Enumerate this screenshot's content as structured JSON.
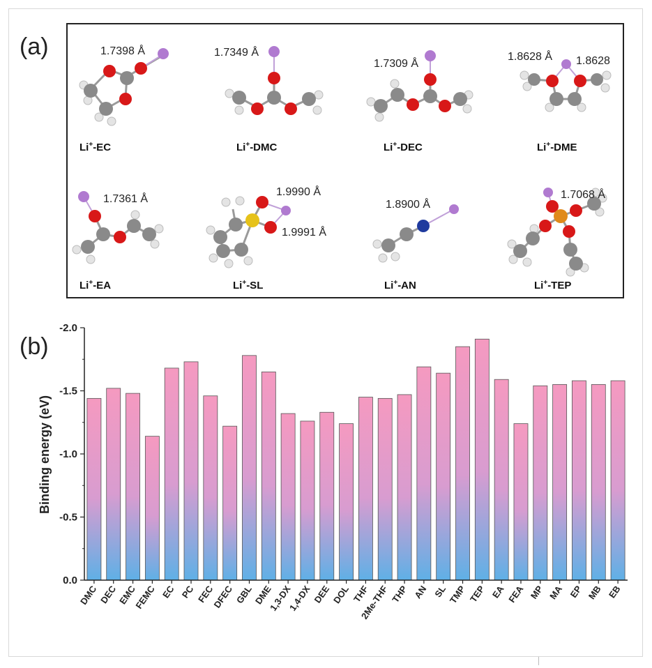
{
  "panel_a": {
    "label": "(a)",
    "molecules": [
      {
        "name": "Li",
        "sup": "+",
        "suffix": "-EC",
        "distances": [
          "1.7398 Å"
        ]
      },
      {
        "name": "Li",
        "sup": "+",
        "suffix": "-DMC",
        "distances": [
          "1.7349 Å"
        ]
      },
      {
        "name": "Li",
        "sup": "+",
        "suffix": "-DEC",
        "distances": [
          "1.7309 Å"
        ]
      },
      {
        "name": "Li",
        "sup": "+",
        "suffix": "-DME",
        "distances": [
          "1.8628 Å",
          "1.8628"
        ]
      },
      {
        "name": "Li",
        "sup": "+",
        "suffix": "-EA",
        "distances": [
          "1.7361 Å"
        ]
      },
      {
        "name": "Li",
        "sup": "+",
        "suffix": "-SL",
        "distances": [
          "1.9990 Å",
          "1.9991 Å"
        ]
      },
      {
        "name": "Li",
        "sup": "+",
        "suffix": "-AN",
        "distances": [
          "1.8900 Å"
        ]
      },
      {
        "name": "Li",
        "sup": "+",
        "suffix": "-TEP",
        "distances": [
          "1.7068 Å"
        ]
      }
    ]
  },
  "panel_b": {
    "label": "(b)"
  },
  "colors": {
    "bar_top": "#f59ac0",
    "bar_bottom": "#5fb0e6",
    "li_atom": "#b07ad0",
    "oxygen": "#d81818",
    "carbon": "#8a8a8a",
    "hydrogen": "#e4e4e4",
    "nitrogen": "#1f3a9e",
    "sulfur": "#e6c21a",
    "phosphorus": "#e08a1a"
  },
  "chart_data": {
    "type": "bar",
    "title": "",
    "xlabel": "",
    "ylabel": "Binding energy (eV)",
    "ylim": [
      0.0,
      -2.0
    ],
    "yticks": [
      "0.0",
      "-0.5",
      "-1.0",
      "-1.5",
      "-2.0"
    ],
    "ytick_values": [
      0.0,
      -0.5,
      -1.0,
      -1.5,
      -2.0
    ],
    "categories": [
      "DMC",
      "DEC",
      "EMC",
      "FEMC",
      "EC",
      "PC",
      "FEC",
      "DFEC",
      "GBL",
      "DME",
      "1,3-DX",
      "1,4-DX",
      "DEE",
      "DOL",
      "THF",
      "2Me-THF",
      "THP",
      "AN",
      "SL",
      "TMP",
      "TEP",
      "EA",
      "FEA",
      "MP",
      "MA",
      "EP",
      "MB",
      "EB"
    ],
    "values": [
      -1.44,
      -1.52,
      -1.48,
      -1.14,
      -1.68,
      -1.73,
      -1.46,
      -1.22,
      -1.78,
      -1.65,
      -1.32,
      -1.26,
      -1.33,
      -1.24,
      -1.45,
      -1.44,
      -1.47,
      -1.69,
      -1.64,
      -1.85,
      -1.91,
      -1.59,
      -1.24,
      -1.54,
      -1.55,
      -1.58,
      -1.55,
      -1.58
    ]
  }
}
